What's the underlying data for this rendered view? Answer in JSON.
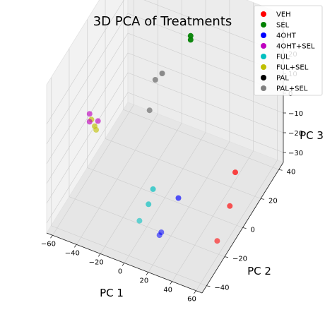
{
  "chart_data": {
    "type": "scatter",
    "title": "3D PCA of Treatments",
    "xlabel": "PC 1",
    "ylabel": "PC 2",
    "zlabel": "PC 3",
    "x_ticks": [
      "−60",
      "−40",
      "−20",
      "0",
      "20",
      "40",
      "60"
    ],
    "y_ticks": [
      "−40",
      "−20",
      "0",
      "20",
      "40"
    ],
    "z_ticks": [
      "20",
      "10",
      "0",
      "−10",
      "−20",
      "−30"
    ],
    "legend_position": "top-right",
    "series": [
      {
        "name": "VEH",
        "color": "#ff0000",
        "points": [
          [
            55,
            5,
            -13
          ],
          [
            58,
            -5,
            -22
          ],
          [
            55,
            -15,
            -33
          ]
        ]
      },
      {
        "name": "SEL",
        "color": "#008000",
        "points": [
          [
            -5,
            35,
            20
          ],
          [
            -5,
            35,
            18
          ]
        ]
      },
      {
        "name": "4OHT",
        "color": "#0000ff",
        "points": [
          [
            15,
            -5,
            -28
          ],
          [
            12,
            -20,
            -35
          ],
          [
            12,
            -22,
            -35
          ]
        ]
      },
      {
        "name": "4OHT+SEL",
        "color": "#bf00bf",
        "points": [
          [
            -57,
            -8,
            0
          ],
          [
            -50,
            -8,
            -2
          ],
          [
            -57,
            -8,
            -4
          ]
        ]
      },
      {
        "name": "FUL",
        "color": "#00bfbf",
        "points": [
          [
            -10,
            0,
            -33
          ],
          [
            -10,
            -5,
            -37
          ],
          [
            -10,
            -15,
            -38
          ]
        ]
      },
      {
        "name": "FUL+SEL",
        "color": "#bfbf00",
        "points": [
          [
            -60,
            -2,
            -8
          ],
          [
            -55,
            -5,
            -8
          ],
          [
            -50,
            -10,
            -5
          ]
        ]
      },
      {
        "name": "PAL",
        "color": "#000000",
        "points": [
          [
            -8,
            50,
            38
          ],
          [
            -6,
            50,
            38
          ]
        ]
      },
      {
        "name": "PAL+SEL",
        "color": "#808080",
        "points": [
          [
            -25,
            30,
            0
          ],
          [
            -27,
            25,
            0
          ],
          [
            -28,
            20,
            -12
          ],
          [
            -2,
            55,
            30
          ]
        ]
      }
    ]
  }
}
